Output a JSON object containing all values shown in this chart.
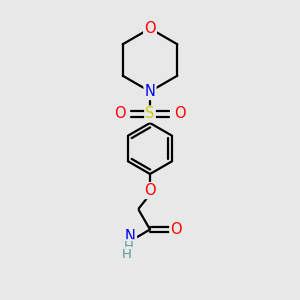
{
  "bg_color": "#e8e8e8",
  "atom_colors": {
    "O": "#ff0000",
    "N": "#0000ff",
    "S": "#cccc00",
    "C": "#000000",
    "H": "#5a9a9a"
  },
  "fig_width": 3.0,
  "fig_height": 3.0,
  "dpi": 100,
  "lw": 1.6,
  "fontsize": 10.5
}
